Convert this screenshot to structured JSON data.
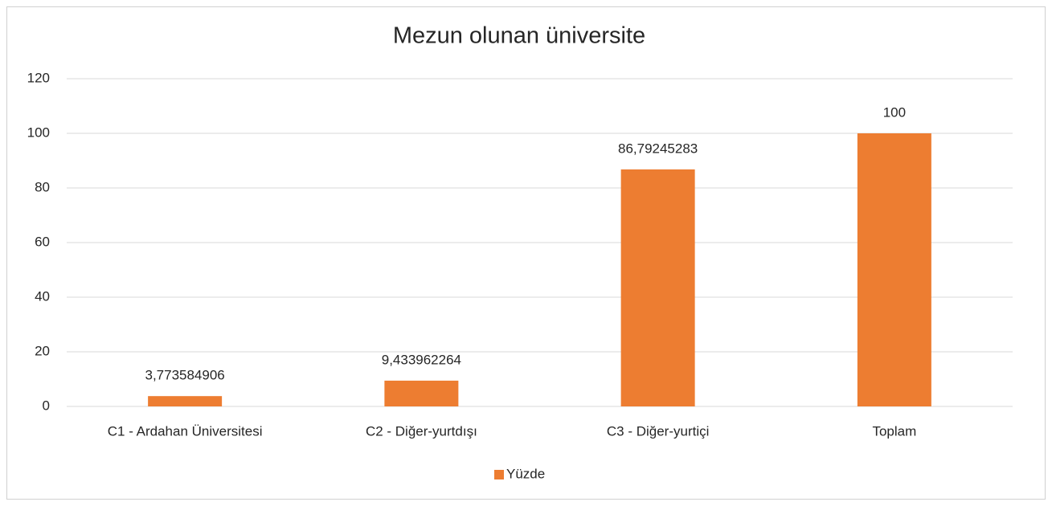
{
  "chart_data": {
    "type": "bar",
    "title": "Mezun olunan üniversite",
    "categories": [
      "C1 - Ardahan Üniversitesi",
      "C2 - Diğer-yurtdışı",
      "C3 - Diğer-yurtiçi",
      "Toplam"
    ],
    "series": [
      {
        "name": "Yüzde",
        "color": "#ed7d31",
        "values": [
          3.773584906,
          9.433962264,
          86.79245283,
          100
        ],
        "value_labels": [
          "3,773584906",
          "9,433962264",
          "86,79245283",
          "100"
        ]
      }
    ],
    "ylim": [
      0,
      120
    ],
    "yticks": [
      0,
      20,
      40,
      60,
      80,
      100,
      120
    ],
    "grid": true,
    "legend": "bottom"
  }
}
